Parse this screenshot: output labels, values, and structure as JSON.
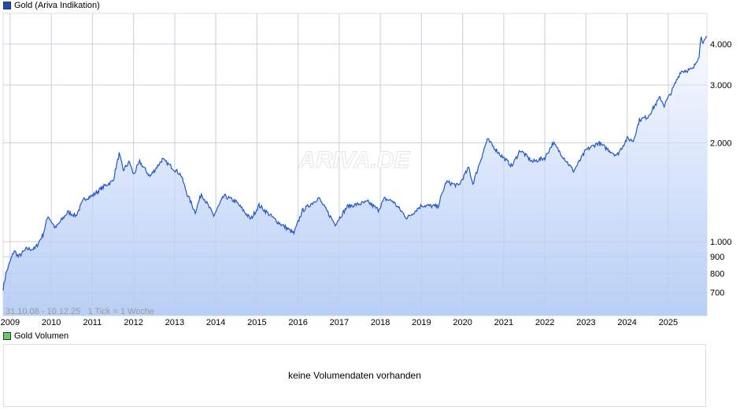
{
  "legend_price": {
    "label": "Gold (Ariva Indikation)",
    "color": "#1a4fb8"
  },
  "legend_volume": {
    "label": "Gold Volumen",
    "color": "#66cc66"
  },
  "watermark": "ARIVA.DE",
  "period_note": "31.10.08 - 10.12.25   1 Tick = 1 Woche",
  "volume_message": "keine Volumendaten vorhanden",
  "chart_data": {
    "type": "area",
    "title": "",
    "xlabel": "",
    "ylabel": "",
    "yscale": "log",
    "xlim": [
      2008.83,
      2025.94
    ],
    "ylim": [
      610,
      4700
    ],
    "grid": true,
    "line_color": "#2255cc",
    "x_ticks": [
      "2009",
      "2010",
      "2011",
      "2012",
      "2013",
      "2014",
      "2015",
      "2016",
      "2017",
      "2018",
      "2019",
      "2020",
      "2021",
      "2022",
      "2023",
      "2024",
      "2025"
    ],
    "y_ticks": [
      {
        "value": 700,
        "label": "700"
      },
      {
        "value": 800,
        "label": "800"
      },
      {
        "value": 900,
        "label": "900"
      },
      {
        "value": 1000,
        "label": "1.000"
      },
      {
        "value": 2000,
        "label": "2.000"
      },
      {
        "value": 3000,
        "label": "3.000"
      },
      {
        "value": 4000,
        "label": "4.000"
      }
    ],
    "series": [
      {
        "x": [
          2008.83,
          2008.9,
          2009.0,
          2009.1,
          2009.2,
          2009.4,
          2009.6,
          2009.8,
          2009.92,
          2010.1,
          2010.4,
          2010.6,
          2010.8,
          2011.0,
          2011.3,
          2011.5,
          2011.65,
          2011.75,
          2011.9,
          2012.0,
          2012.15,
          2012.4,
          2012.7,
          2012.9,
          2013.15,
          2013.3,
          2013.5,
          2013.65,
          2013.95,
          2014.2,
          2014.5,
          2014.85,
          2015.05,
          2015.5,
          2015.9,
          2016.1,
          2016.5,
          2016.9,
          2017.2,
          2017.7,
          2017.95,
          2018.1,
          2018.3,
          2018.65,
          2019.0,
          2019.4,
          2019.6,
          2019.9,
          2020.15,
          2020.25,
          2020.6,
          2020.9,
          2021.2,
          2021.4,
          2021.7,
          2022.0,
          2022.2,
          2022.7,
          2023.0,
          2023.3,
          2023.75,
          2024.0,
          2024.15,
          2024.3,
          2024.5,
          2024.8,
          2024.9,
          2025.1,
          2025.3,
          2025.6,
          2025.75,
          2025.8,
          2025.85,
          2025.94
        ],
        "values": [
          720,
          800,
          870,
          940,
          900,
          950,
          950,
          1050,
          1200,
          1100,
          1230,
          1200,
          1350,
          1380,
          1480,
          1530,
          1850,
          1650,
          1750,
          1600,
          1750,
          1580,
          1780,
          1700,
          1600,
          1400,
          1230,
          1400,
          1200,
          1380,
          1320,
          1170,
          1290,
          1150,
          1060,
          1240,
          1360,
          1130,
          1280,
          1320,
          1250,
          1350,
          1330,
          1180,
          1290,
          1280,
          1520,
          1480,
          1680,
          1500,
          2050,
          1850,
          1700,
          1900,
          1750,
          1800,
          2000,
          1640,
          1900,
          2000,
          1830,
          2060,
          2030,
          2350,
          2400,
          2750,
          2600,
          2900,
          3300,
          3350,
          3700,
          4250,
          4000,
          4200
        ]
      }
    ]
  }
}
